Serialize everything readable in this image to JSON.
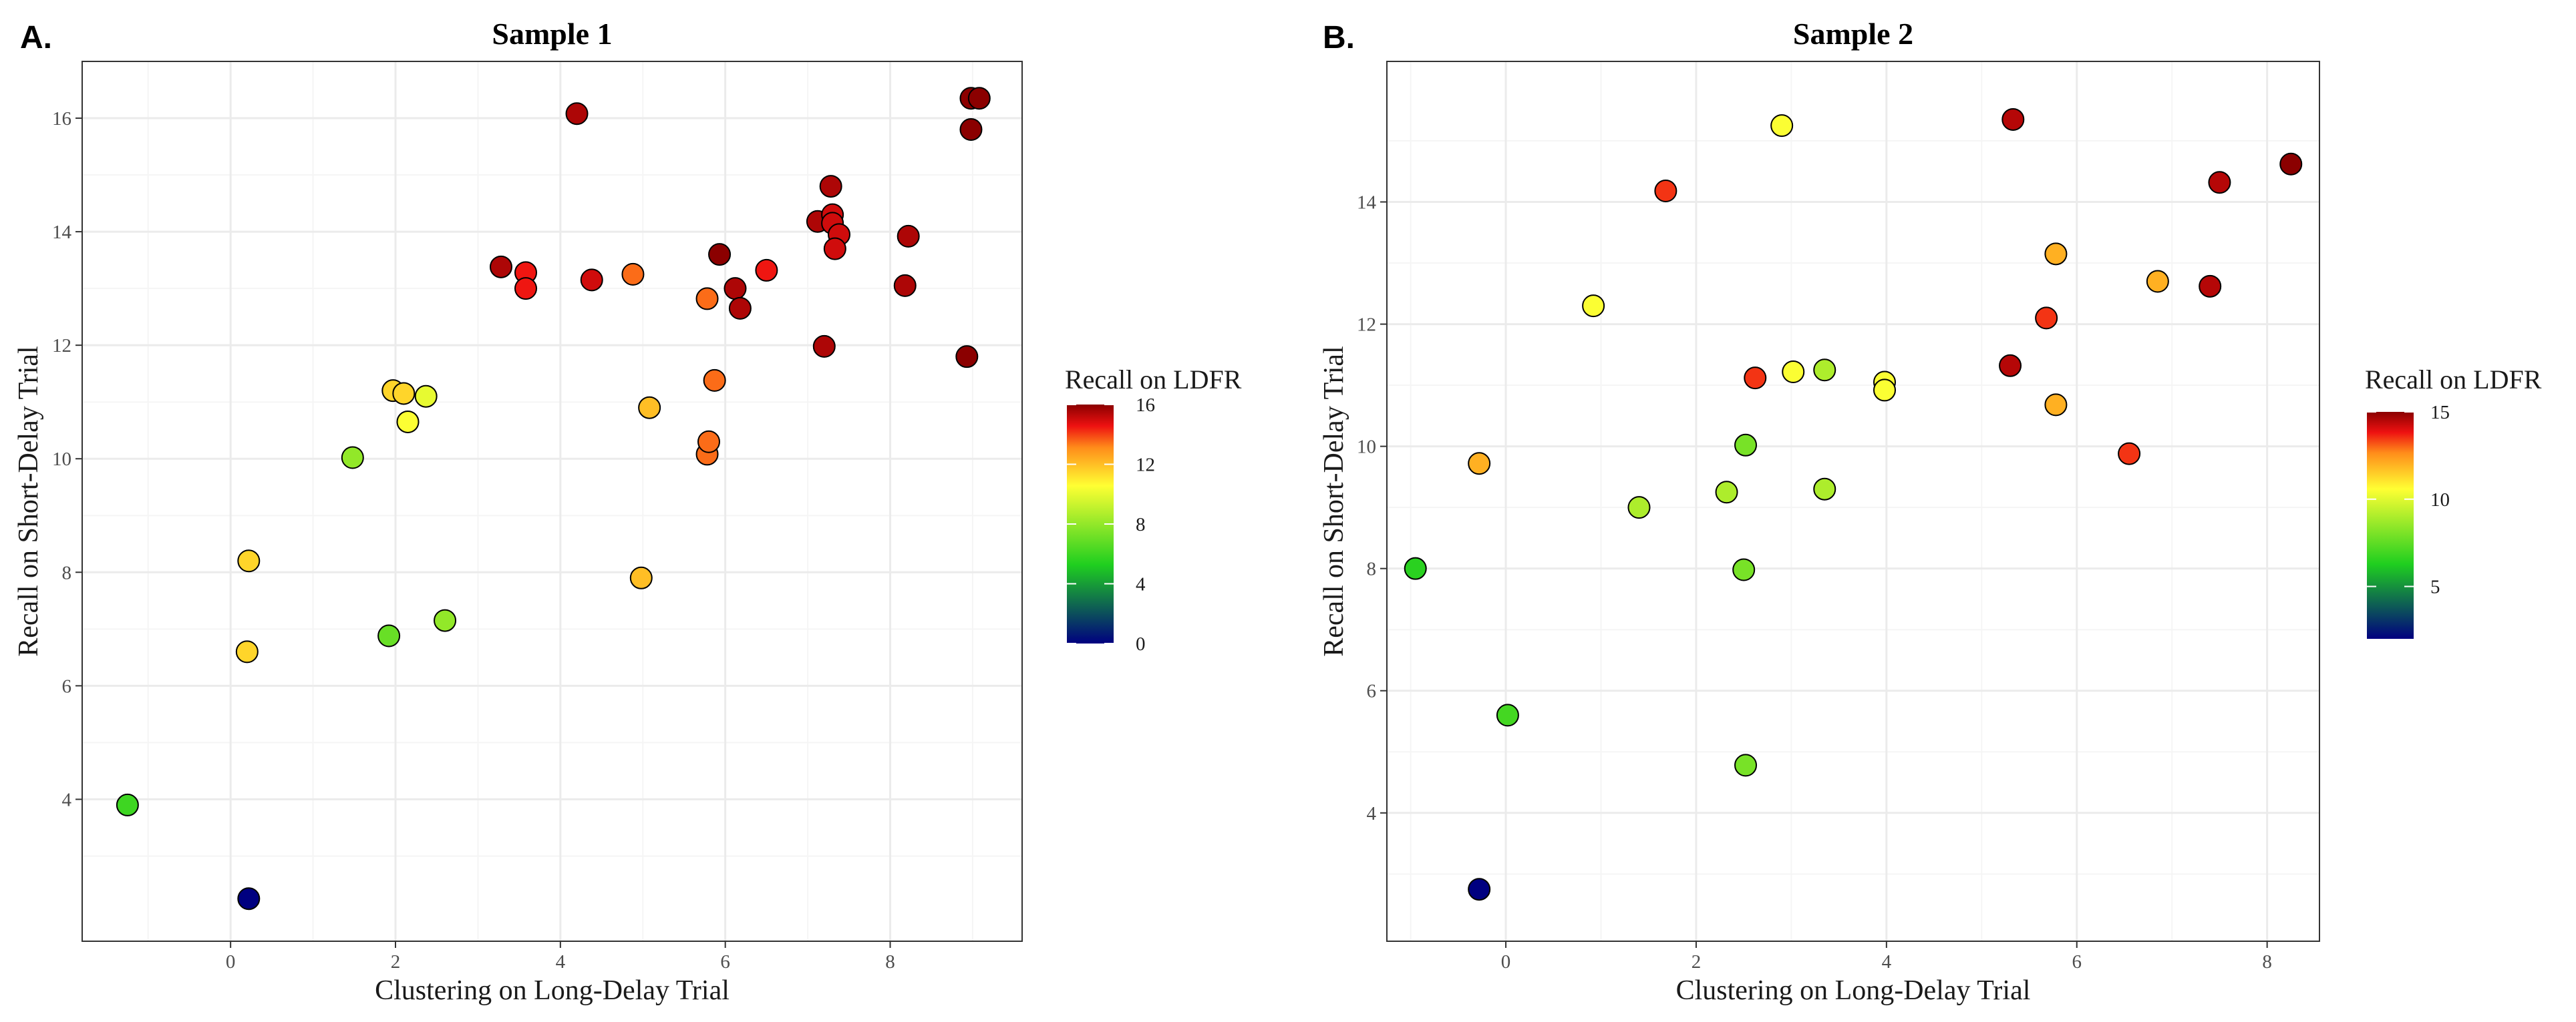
{
  "chart_data": [
    {
      "panel_label": "A.",
      "type": "scatter",
      "title": "Sample 1",
      "xlabel": "Clustering on Long-Delay Trial",
      "ylabel": "Recall on Short-Delay Trial",
      "xlim": [
        -1.8,
        9.6
      ],
      "ylim": [
        1.5,
        17.0
      ],
      "x_ticks": [
        0,
        2,
        4,
        6,
        8
      ],
      "y_ticks": [
        4,
        6,
        8,
        10,
        12,
        14,
        16
      ],
      "grid": true,
      "legend": {
        "title": "Recall on LDFR",
        "placement": "right",
        "min": 0,
        "max": 16,
        "ticks": [
          0,
          4,
          8,
          12,
          16
        ]
      },
      "points": [
        {
          "x": -1.25,
          "y": 3.9,
          "c": 6
        },
        {
          "x": 0.22,
          "y": 2.25,
          "c": 0
        },
        {
          "x": 0.2,
          "y": 6.6,
          "c": 11.5
        },
        {
          "x": 0.22,
          "y": 8.2,
          "c": 11.5
        },
        {
          "x": 1.48,
          "y": 10.02,
          "c": 8
        },
        {
          "x": 1.92,
          "y": 6.88,
          "c": 7
        },
        {
          "x": 1.97,
          "y": 11.2,
          "c": 11.5
        },
        {
          "x": 2.1,
          "y": 11.15,
          "c": 11.5
        },
        {
          "x": 2.15,
          "y": 10.65,
          "c": 10.5
        },
        {
          "x": 2.37,
          "y": 11.1,
          "c": 10
        },
        {
          "x": 2.6,
          "y": 7.15,
          "c": 8
        },
        {
          "x": 3.28,
          "y": 13.38,
          "c": 15.5
        },
        {
          "x": 3.58,
          "y": 13.28,
          "c": 14.5
        },
        {
          "x": 3.58,
          "y": 13.0,
          "c": 14.5
        },
        {
          "x": 4.2,
          "y": 16.08,
          "c": 15.5
        },
        {
          "x": 4.38,
          "y": 13.15,
          "c": 15
        },
        {
          "x": 4.88,
          "y": 13.25,
          "c": 13.5
        },
        {
          "x": 4.98,
          "y": 7.9,
          "c": 12
        },
        {
          "x": 5.08,
          "y": 10.9,
          "c": 12
        },
        {
          "x": 5.78,
          "y": 12.82,
          "c": 13.5
        },
        {
          "x": 5.78,
          "y": 10.08,
          "c": 13.5
        },
        {
          "x": 5.8,
          "y": 10.3,
          "c": 13.5
        },
        {
          "x": 5.87,
          "y": 11.38,
          "c": 13.5
        },
        {
          "x": 5.93,
          "y": 13.6,
          "c": 16
        },
        {
          "x": 6.12,
          "y": 13.0,
          "c": 15.5
        },
        {
          "x": 6.18,
          "y": 12.65,
          "c": 15.5
        },
        {
          "x": 6.5,
          "y": 13.32,
          "c": 14.5
        },
        {
          "x": 7.12,
          "y": 14.18,
          "c": 15.5
        },
        {
          "x": 7.2,
          "y": 11.98,
          "c": 15.5
        },
        {
          "x": 7.28,
          "y": 14.8,
          "c": 15.5
        },
        {
          "x": 7.3,
          "y": 14.3,
          "c": 15
        },
        {
          "x": 7.3,
          "y": 14.15,
          "c": 15
        },
        {
          "x": 7.38,
          "y": 13.95,
          "c": 15
        },
        {
          "x": 7.33,
          "y": 13.7,
          "c": 15
        },
        {
          "x": 8.18,
          "y": 13.05,
          "c": 15.5
        },
        {
          "x": 8.22,
          "y": 13.92,
          "c": 15.5
        },
        {
          "x": 8.93,
          "y": 11.8,
          "c": 16
        },
        {
          "x": 8.98,
          "y": 15.8,
          "c": 16
        },
        {
          "x": 8.98,
          "y": 16.35,
          "c": 16
        },
        {
          "x": 9.08,
          "y": 16.35,
          "c": 16
        }
      ]
    },
    {
      "panel_label": "B.",
      "type": "scatter",
      "title": "Sample 2",
      "xlabel": "Clustering on Long-Delay Trial",
      "ylabel": "Recall on Short-Delay Trial",
      "xlim": [
        -1.25,
        8.55
      ],
      "ylim": [
        1.9,
        16.3
      ],
      "x_ticks": [
        0,
        2,
        4,
        6,
        8
      ],
      "y_ticks": [
        4,
        6,
        8,
        10,
        12,
        14
      ],
      "grid": true,
      "legend": {
        "title": "Recall on LDFR",
        "placement": "right",
        "min": 2,
        "max": 15,
        "ticks": [
          5,
          10,
          15
        ]
      },
      "points": [
        {
          "x": -0.95,
          "y": 8.0,
          "c": 6.5
        },
        {
          "x": -0.28,
          "y": 2.75,
          "c": 2
        },
        {
          "x": -0.28,
          "y": 9.72,
          "c": 12
        },
        {
          "x": 0.02,
          "y": 5.6,
          "c": 7
        },
        {
          "x": 0.92,
          "y": 12.3,
          "c": 10.5
        },
        {
          "x": 1.4,
          "y": 9.0,
          "c": 9
        },
        {
          "x": 1.68,
          "y": 14.18,
          "c": 13.5
        },
        {
          "x": 2.32,
          "y": 9.25,
          "c": 9
        },
        {
          "x": 2.5,
          "y": 7.98,
          "c": 8
        },
        {
          "x": 2.52,
          "y": 10.02,
          "c": 8
        },
        {
          "x": 2.52,
          "y": 4.78,
          "c": 8
        },
        {
          "x": 2.62,
          "y": 11.12,
          "c": 13.5
        },
        {
          "x": 2.9,
          "y": 15.25,
          "c": 10.5
        },
        {
          "x": 3.02,
          "y": 11.22,
          "c": 10.5
        },
        {
          "x": 3.35,
          "y": 11.25,
          "c": 9
        },
        {
          "x": 3.35,
          "y": 9.3,
          "c": 9
        },
        {
          "x": 3.98,
          "y": 11.05,
          "c": 10.5
        },
        {
          "x": 3.98,
          "y": 10.92,
          "c": 10.5
        },
        {
          "x": 5.3,
          "y": 11.32,
          "c": 14.5
        },
        {
          "x": 5.33,
          "y": 15.35,
          "c": 14.5
        },
        {
          "x": 5.68,
          "y": 12.1,
          "c": 13.5
        },
        {
          "x": 5.78,
          "y": 13.15,
          "c": 12
        },
        {
          "x": 5.78,
          "y": 10.68,
          "c": 12
        },
        {
          "x": 6.55,
          "y": 9.88,
          "c": 13.5
        },
        {
          "x": 6.85,
          "y": 12.7,
          "c": 12
        },
        {
          "x": 7.4,
          "y": 12.62,
          "c": 14.5
        },
        {
          "x": 7.5,
          "y": 14.32,
          "c": 14.5
        },
        {
          "x": 8.25,
          "y": 14.62,
          "c": 15
        }
      ]
    }
  ],
  "colors": {
    "scale": [
      "#000080",
      "#1fcf1f",
      "#ffff33",
      "#ff8c1a",
      "#ee1111",
      "#8b0000"
    ],
    "scale_stops": [
      0,
      0.33,
      0.66,
      0.82,
      0.91,
      1
    ],
    "panel_border": "#333333",
    "grid_major": "#ebebeb",
    "grid_minor": "#f5f5f5",
    "point_outline": "#000000"
  }
}
